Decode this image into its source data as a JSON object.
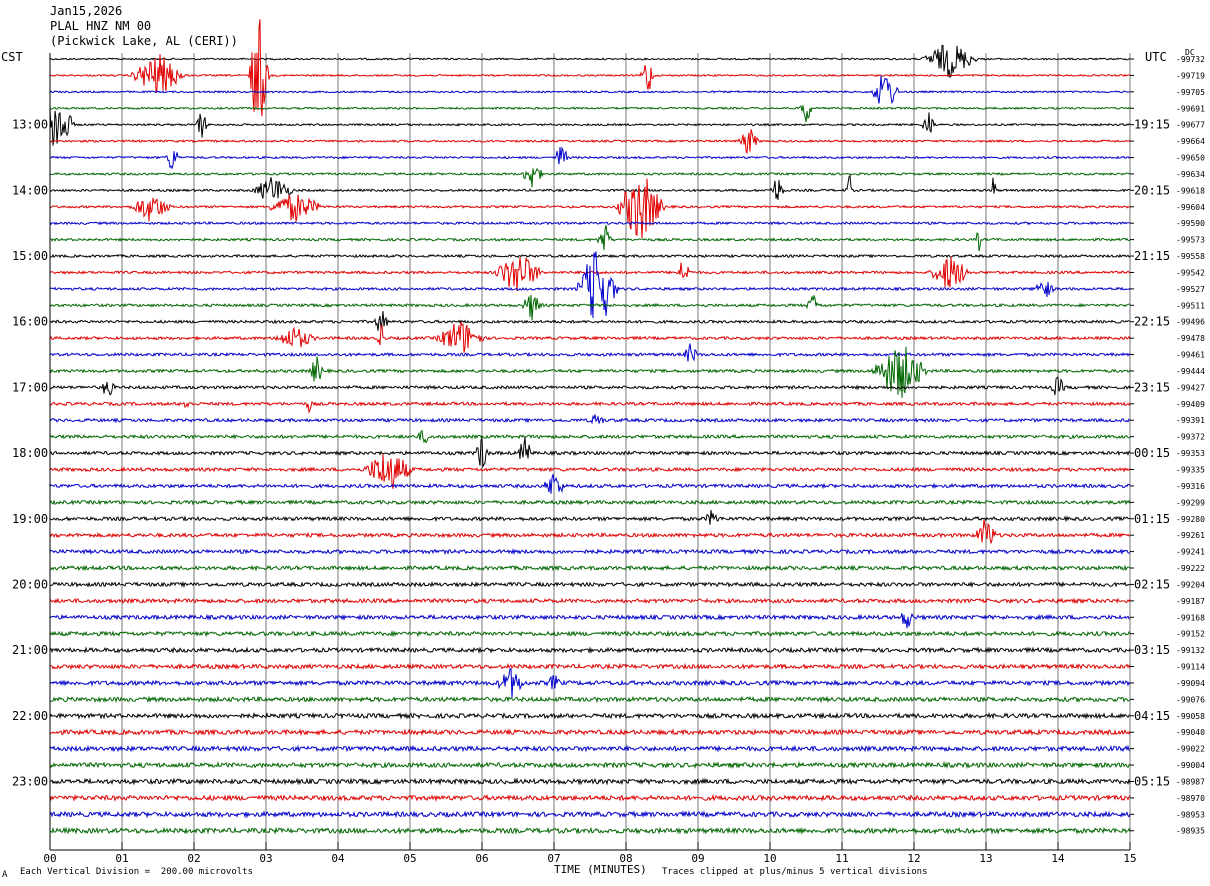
{
  "header": {
    "date": "Jan15,2026",
    "station": "PLAL HNZ NM 00",
    "location": "(Pickwick Lake, AL (CERI))"
  },
  "left_tz": "CST",
  "right_tz": "UTC",
  "dc_label": "DC",
  "footer": {
    "scale": "Each Vertical Division =  200.00 microvolts",
    "clip": "Traces clipped at plus/minus 5 vertical divisions",
    "mark": "A"
  },
  "colors": {
    "black": "#000000",
    "red": "#e00000",
    "blue": "#0000cc",
    "green": "#006600",
    "grid": "#777777"
  },
  "chart_data": {
    "type": "line",
    "xlabel": "TIME (MINUTES)",
    "xlim": [
      0,
      15
    ],
    "x_ticks": [
      "00",
      "01",
      "02",
      "03",
      "04",
      "05",
      "06",
      "07",
      "08",
      "09",
      "10",
      "11",
      "12",
      "13",
      "14",
      "15"
    ],
    "trace_colors": [
      "black",
      "red",
      "blue",
      "green"
    ],
    "left_hour_labels": [
      "13:00",
      "14:00",
      "15:00",
      "16:00",
      "17:00",
      "18:00",
      "19:00",
      "20:00",
      "21:00",
      "22:00",
      "23:00"
    ],
    "right_hour_labels": [
      "19:15",
      "20:15",
      "21:15",
      "22:15",
      "23:15",
      "00:15",
      "01:15",
      "02:15",
      "03:15",
      "04:15",
      "05:15"
    ],
    "hour_label_every": 4,
    "hour_label_first_trace": 4,
    "dc_offsets": [
      "-99732",
      "-99719",
      "-99705",
      "-99691",
      "-99677",
      "-99664",
      "-99650",
      "-99634",
      "-99618",
      "-99604",
      "-99590",
      "-99573",
      "-99558",
      "-99542",
      "-99527",
      "-99511",
      "-99496",
      "-99478",
      "-99461",
      "-99444",
      "-99427",
      "-99409",
      "-99391",
      "-99372",
      "-99353",
      "-99335",
      "-99316",
      "-99299",
      "-99280",
      "-99261",
      "-99241",
      "-99222",
      "-99204",
      "-99187",
      "-99168",
      "-99152",
      "-99132",
      "-99114",
      "-99094",
      "-99076",
      "-99058",
      "-99040",
      "-99022",
      "-99004",
      "-98987",
      "-98970",
      "-98953",
      "-98935"
    ],
    "events": [
      {
        "trace": 1,
        "minute": 2.9,
        "amp": 9,
        "dur": 0.15
      },
      {
        "trace": 1,
        "minute": 1.5,
        "amp": 3,
        "dur": 0.4
      },
      {
        "trace": 1,
        "minute": 8.3,
        "amp": 3,
        "dur": 0.1
      },
      {
        "trace": 0,
        "minute": 12.5,
        "amp": 2.5,
        "dur": 0.4
      },
      {
        "trace": 2,
        "minute": 11.6,
        "amp": 3,
        "dur": 0.2
      },
      {
        "trace": 3,
        "minute": 10.5,
        "amp": 2,
        "dur": 0.1
      },
      {
        "trace": 4,
        "minute": 0.1,
        "amp": 4,
        "dur": 0.25
      },
      {
        "trace": 4,
        "minute": 2.1,
        "amp": 2,
        "dur": 0.1
      },
      {
        "trace": 4,
        "minute": 12.2,
        "amp": 2,
        "dur": 0.1
      },
      {
        "trace": 5,
        "minute": 9.7,
        "amp": 2,
        "dur": 0.15
      },
      {
        "trace": 6,
        "minute": 1.7,
        "amp": 2,
        "dur": 0.1
      },
      {
        "trace": 6,
        "minute": 7.1,
        "amp": 2,
        "dur": 0.1
      },
      {
        "trace": 7,
        "minute": 6.7,
        "amp": 2,
        "dur": 0.15
      },
      {
        "trace": 8,
        "minute": 3.1,
        "amp": 2,
        "dur": 0.3
      },
      {
        "trace": 8,
        "minute": 10.1,
        "amp": 2,
        "dur": 0.1
      },
      {
        "trace": 8,
        "minute": 11.1,
        "amp": 2.5,
        "dur": 0.05
      },
      {
        "trace": 8,
        "minute": 13.1,
        "amp": 2,
        "dur": 0.05
      },
      {
        "trace": 9,
        "minute": 8.2,
        "amp": 5,
        "dur": 0.35
      },
      {
        "trace": 9,
        "minute": 1.4,
        "amp": 2,
        "dur": 0.3
      },
      {
        "trace": 9,
        "minute": 3.4,
        "amp": 2,
        "dur": 0.4
      },
      {
        "trace": 11,
        "minute": 7.7,
        "amp": 2.5,
        "dur": 0.1
      },
      {
        "trace": 11,
        "minute": 12.9,
        "amp": 1.5,
        "dur": 0.05
      },
      {
        "trace": 13,
        "minute": 6.5,
        "amp": 3,
        "dur": 0.35
      },
      {
        "trace": 13,
        "minute": 12.5,
        "amp": 2.5,
        "dur": 0.3
      },
      {
        "trace": 13,
        "minute": 8.8,
        "amp": 2,
        "dur": 0.1
      },
      {
        "trace": 14,
        "minute": 7.6,
        "amp": 6,
        "dur": 0.3
      },
      {
        "trace": 14,
        "minute": 13.8,
        "amp": 1.5,
        "dur": 0.15
      },
      {
        "trace": 15,
        "minute": 6.7,
        "amp": 2,
        "dur": 0.15
      },
      {
        "trace": 15,
        "minute": 10.6,
        "amp": 1.5,
        "dur": 0.1
      },
      {
        "trace": 16,
        "minute": 4.6,
        "amp": 2,
        "dur": 0.1
      },
      {
        "trace": 17,
        "minute": 5.7,
        "amp": 2.5,
        "dur": 0.35
      },
      {
        "trace": 17,
        "minute": 3.4,
        "amp": 1.5,
        "dur": 0.3
      },
      {
        "trace": 17,
        "minute": 4.6,
        "amp": 3,
        "dur": 0.05
      },
      {
        "trace": 18,
        "minute": 8.9,
        "amp": 1.5,
        "dur": 0.1
      },
      {
        "trace": 19,
        "minute": 11.8,
        "amp": 4,
        "dur": 0.4
      },
      {
        "trace": 19,
        "minute": 3.7,
        "amp": 2,
        "dur": 0.1
      },
      {
        "trace": 20,
        "minute": 0.8,
        "amp": 1.5,
        "dur": 0.1
      },
      {
        "trace": 20,
        "minute": 14.0,
        "amp": 1.5,
        "dur": 0.1
      },
      {
        "trace": 21,
        "minute": 1.9,
        "amp": 1,
        "dur": 0.05
      },
      {
        "trace": 21,
        "minute": 3.6,
        "amp": 1,
        "dur": 0.05
      },
      {
        "trace": 22,
        "minute": 7.6,
        "amp": 1,
        "dur": 0.1
      },
      {
        "trace": 23,
        "minute": 5.2,
        "amp": 1,
        "dur": 0.1
      },
      {
        "trace": 24,
        "minute": 6.0,
        "amp": 2.5,
        "dur": 0.1
      },
      {
        "trace": 24,
        "minute": 6.6,
        "amp": 2.5,
        "dur": 0.1
      },
      {
        "trace": 25,
        "minute": 4.7,
        "amp": 3,
        "dur": 0.35
      },
      {
        "trace": 26,
        "minute": 7.0,
        "amp": 2,
        "dur": 0.15
      },
      {
        "trace": 28,
        "minute": 9.2,
        "amp": 1.2,
        "dur": 0.1
      },
      {
        "trace": 29,
        "minute": 13.0,
        "amp": 2.5,
        "dur": 0.15
      },
      {
        "trace": 34,
        "minute": 11.9,
        "amp": 1.5,
        "dur": 0.1
      },
      {
        "trace": 38,
        "minute": 6.4,
        "amp": 2,
        "dur": 0.2
      },
      {
        "trace": 38,
        "minute": 7.0,
        "amp": 1,
        "dur": 0.1
      }
    ]
  }
}
